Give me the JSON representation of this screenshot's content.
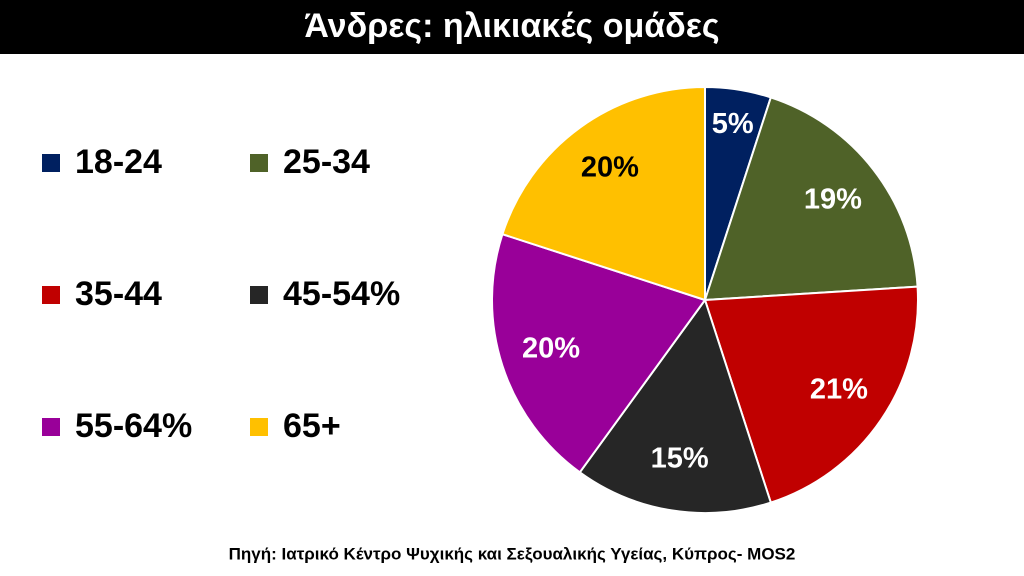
{
  "chart_data": {
    "type": "pie",
    "title": "Άνδρες: ηλικιακές ομάδες",
    "source": "Πηγή: Ιατρικό Κέντρο Ψυχικής και Σεξουαλικής Υγείας, Κύπρος- MOS2",
    "categories": [
      "18-24",
      "25-34",
      "35-44",
      "45-54%",
      "55-64%",
      "65+"
    ],
    "values": [
      5,
      19,
      21,
      15,
      20,
      20
    ],
    "value_labels": [
      "5%",
      "19%",
      "21%",
      "15%",
      "20%",
      "20%"
    ],
    "colors": [
      "#002060",
      "#4f6228",
      "#c00000",
      "#262626",
      "#990099",
      "#ffc000"
    ],
    "label_colors": [
      "#ffffff",
      "#ffffff",
      "#ffffff",
      "#ffffff",
      "#ffffff",
      "#000000"
    ]
  }
}
